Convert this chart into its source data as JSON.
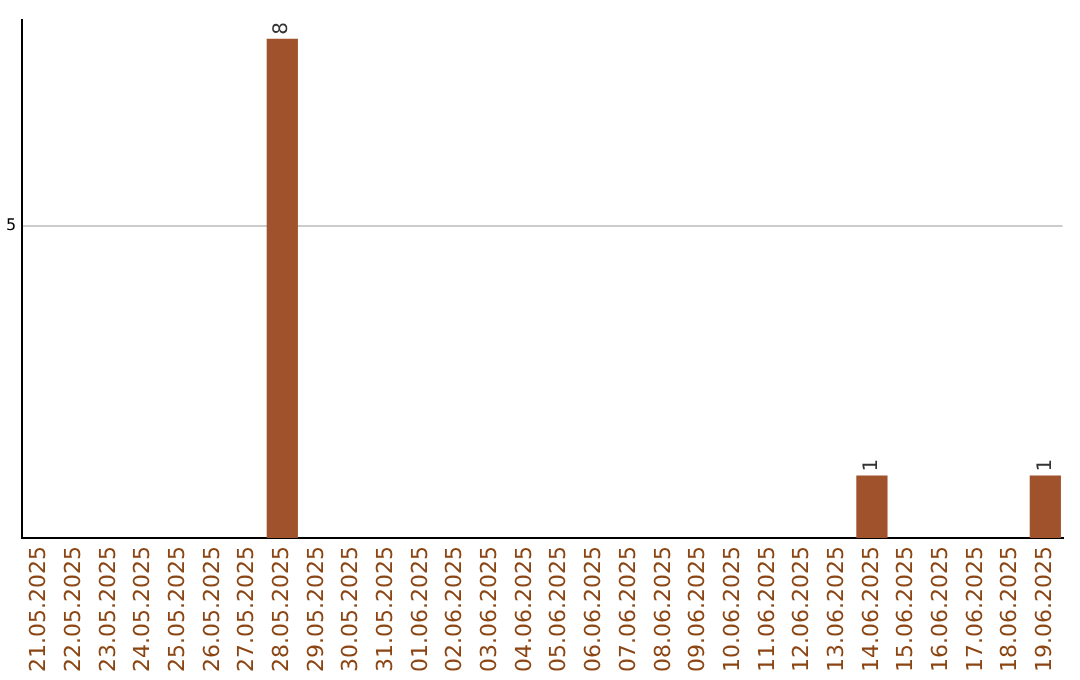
{
  "chart_data": {
    "type": "bar",
    "categories": [
      "21.05.2025",
      "22.05.2025",
      "23.05.2025",
      "24.05.2025",
      "25.05.2025",
      "26.05.2025",
      "27.05.2025",
      "28.05.2025",
      "29.05.2025",
      "30.05.2025",
      "31.05.2025",
      "01.06.2025",
      "02.06.2025",
      "03.06.2025",
      "04.06.2025",
      "05.06.2025",
      "06.06.2025",
      "07.06.2025",
      "08.06.2025",
      "09.06.2025",
      "10.06.2025",
      "11.06.2025",
      "12.06.2025",
      "13.06.2025",
      "14.06.2025",
      "15.06.2025",
      "16.06.2025",
      "17.06.2025",
      "18.06.2025",
      "19.06.2025"
    ],
    "values": [
      0,
      0,
      0,
      0,
      0,
      0,
      0,
      8,
      0,
      0,
      0,
      0,
      0,
      0,
      0,
      0,
      0,
      0,
      0,
      0,
      0,
      0,
      0,
      0,
      1,
      0,
      0,
      0,
      0,
      1
    ],
    "value_labels": [
      null,
      null,
      null,
      null,
      null,
      null,
      null,
      "8",
      null,
      null,
      null,
      null,
      null,
      null,
      null,
      null,
      null,
      null,
      null,
      null,
      null,
      null,
      null,
      null,
      "1",
      null,
      null,
      null,
      null,
      "1"
    ],
    "color": "#a0522d",
    "ylim": [
      0,
      8.3
    ],
    "yticks": [
      5
    ],
    "grid": "y",
    "legend": false
  }
}
